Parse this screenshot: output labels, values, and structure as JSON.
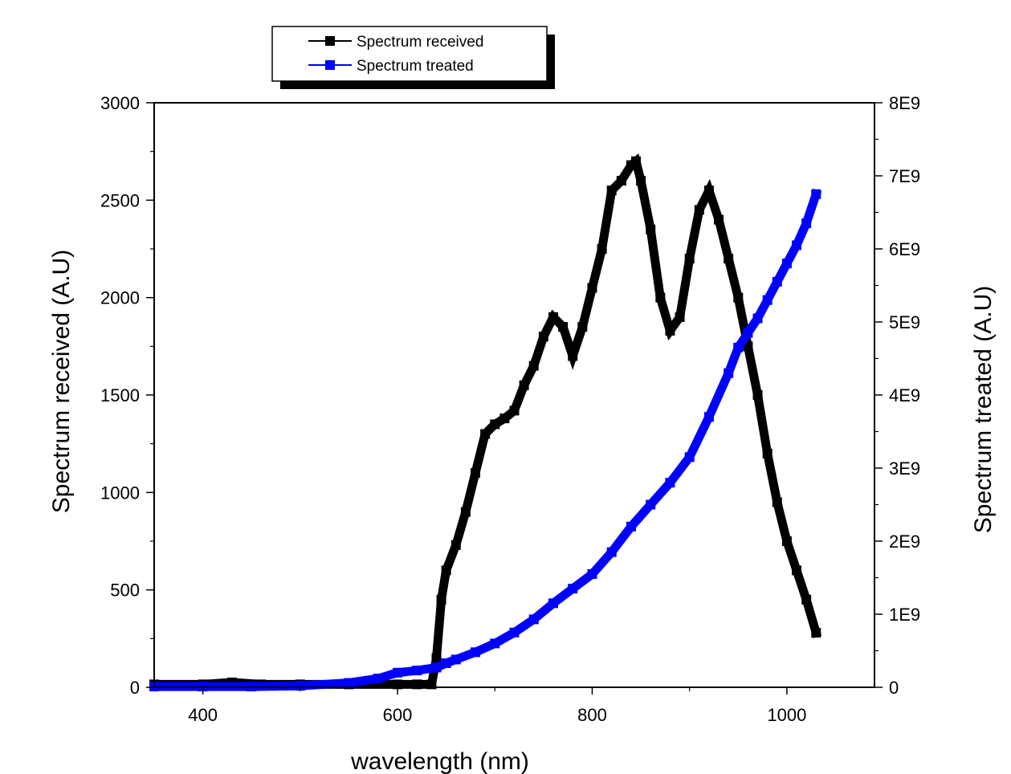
{
  "chart_data": {
    "type": "line",
    "title": "",
    "xlabel": "wavelength (nm)",
    "ylabel": "Spectrum received (A.U)",
    "y2label": "Spectrum treated (A.U)",
    "xlim": [
      350,
      1090
    ],
    "ylim": [
      0,
      3000
    ],
    "y2lim": [
      0,
      8000000000
    ],
    "x_ticks": [
      400,
      600,
      800,
      1000
    ],
    "x_tick_labels": [
      "400",
      "600",
      "800",
      "1000"
    ],
    "y_ticks": [
      0,
      500,
      1000,
      1500,
      2000,
      2500,
      3000
    ],
    "y_tick_labels": [
      "0",
      "500",
      "1000",
      "1500",
      "2000",
      "2500",
      "3000"
    ],
    "y2_ticks": [
      0,
      1000000000,
      2000000000,
      3000000000,
      4000000000,
      5000000000,
      6000000000,
      7000000000,
      8000000000
    ],
    "y2_tick_labels": [
      "0",
      "1E9",
      "2E9",
      "3E9",
      "4E9",
      "5E9",
      "6E9",
      "7E9",
      "8E9"
    ],
    "grid": false,
    "legend_position": "top-left, above plot",
    "series": [
      {
        "name": "Spectrum received",
        "axis": "left",
        "color": "#000000",
        "marker": "square",
        "x": [
          350,
          400,
          430,
          460,
          500,
          550,
          600,
          620,
          635,
          640,
          645,
          650,
          660,
          670,
          680,
          690,
          700,
          710,
          720,
          730,
          740,
          750,
          760,
          770,
          780,
          790,
          800,
          810,
          820,
          830,
          840,
          845,
          850,
          860,
          870,
          880,
          890,
          900,
          910,
          920,
          930,
          940,
          950,
          960,
          970,
          980,
          990,
          1000,
          1010,
          1020,
          1030
        ],
        "values": [
          15,
          15,
          25,
          15,
          15,
          15,
          15,
          15,
          15,
          150,
          450,
          600,
          730,
          900,
          1100,
          1300,
          1350,
          1380,
          1420,
          1550,
          1650,
          1800,
          1900,
          1850,
          1700,
          1850,
          2050,
          2250,
          2550,
          2600,
          2680,
          2700,
          2600,
          2350,
          2000,
          1830,
          1900,
          2200,
          2450,
          2550,
          2400,
          2200,
          2000,
          1750,
          1500,
          1200,
          950,
          750,
          600,
          450,
          280
        ]
      },
      {
        "name": "Spectrum treated",
        "axis": "right",
        "color": "#0000ff",
        "marker": "square",
        "x": [
          350,
          400,
          450,
          500,
          550,
          580,
          600,
          620,
          640,
          650,
          660,
          680,
          700,
          720,
          740,
          760,
          780,
          800,
          820,
          840,
          860,
          880,
          900,
          920,
          940,
          950,
          960,
          970,
          980,
          990,
          1000,
          1010,
          1020,
          1030
        ],
        "values": [
          10000000,
          10000000,
          10000000,
          20000000,
          60000000,
          120000000,
          200000000,
          230000000,
          270000000,
          330000000,
          380000000,
          480000000,
          600000000,
          750000000,
          930000000,
          1150000000,
          1350000000,
          1550000000,
          1850000000,
          2200000000,
          2500000000,
          2800000000,
          3150000000,
          3700000000,
          4300000000,
          4650000000,
          4850000000,
          5050000000,
          5300000000,
          5550000000,
          5800000000,
          6050000000,
          6350000000,
          6750000000
        ]
      }
    ]
  }
}
